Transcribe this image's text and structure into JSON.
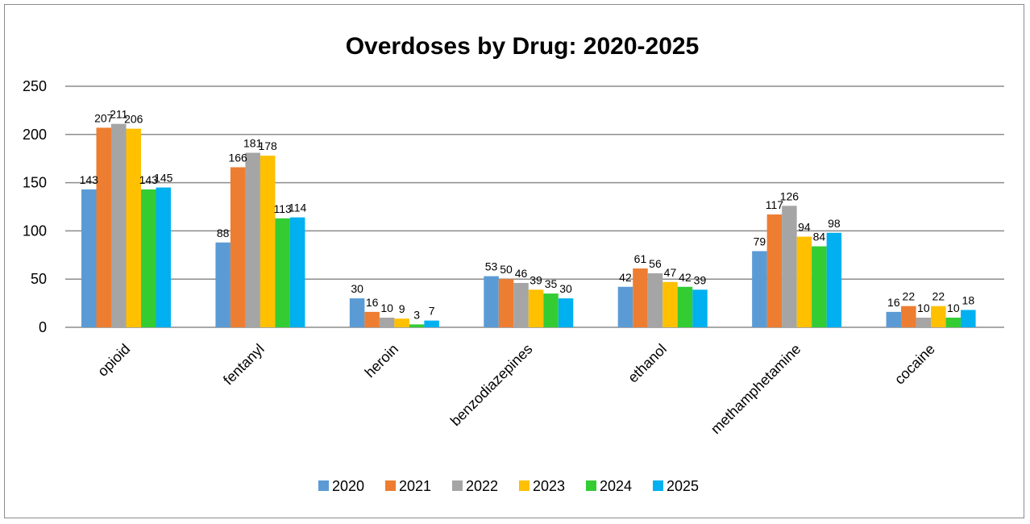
{
  "chart_data": {
    "type": "bar",
    "title": "Overdoses by Drug: 2020-2025",
    "xlabel": "",
    "ylabel": "",
    "ylim": [
      0,
      250
    ],
    "yticks": [
      "0",
      "50",
      "100",
      "150",
      "200",
      "250"
    ],
    "grid": true,
    "legend_position": "bottom",
    "categories": [
      "opioid",
      "fentanyl",
      "heroin",
      "benzodiazepines",
      "ethanol",
      "methamphetamine",
      "cocaine"
    ],
    "series": [
      {
        "name": "2020",
        "color": "#5b9bd5",
        "values": [
          143,
          88,
          30,
          53,
          42,
          79,
          16
        ]
      },
      {
        "name": "2021",
        "color": "#ed7d31",
        "values": [
          207,
          166,
          16,
          50,
          61,
          117,
          22
        ]
      },
      {
        "name": "2022",
        "color": "#a5a5a5",
        "values": [
          211,
          181,
          10,
          46,
          56,
          126,
          10
        ]
      },
      {
        "name": "2023",
        "color": "#ffc000",
        "values": [
          206,
          178,
          9,
          39,
          47,
          94,
          22
        ]
      },
      {
        "name": "2024",
        "color": "#33cc33",
        "values": [
          143,
          113,
          3,
          35,
          42,
          84,
          10
        ]
      },
      {
        "name": "2025",
        "color": "#00b0f0",
        "values": [
          145,
          114,
          7,
          30,
          39,
          98,
          18
        ]
      }
    ]
  }
}
